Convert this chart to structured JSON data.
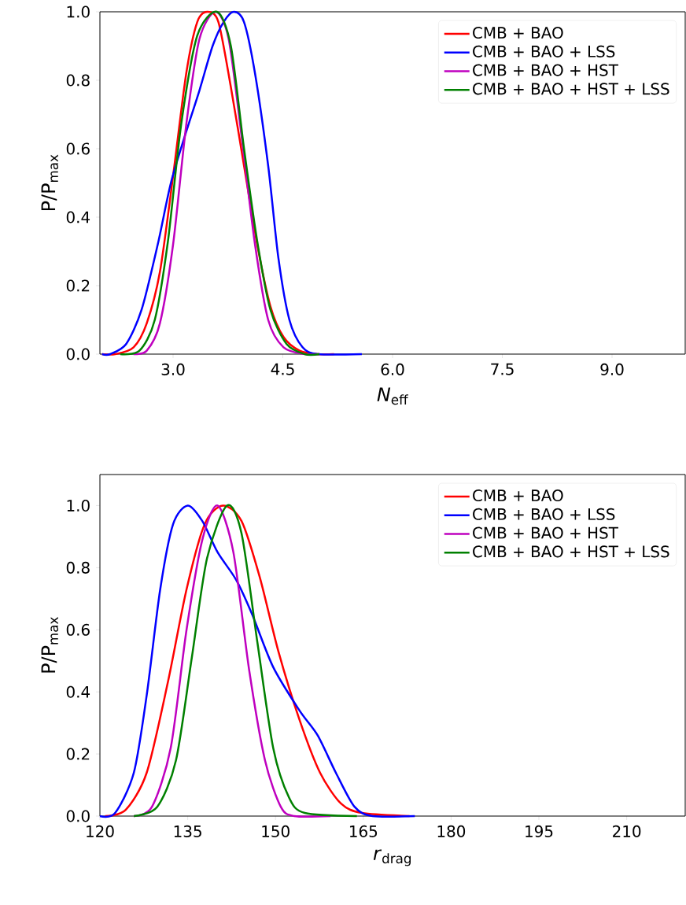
{
  "chart_data": [
    {
      "type": "line",
      "xlabel": "*N*$_{eff}$",
      "ylabel": "P/P$_{max}$",
      "xlim": [
        2.0,
        10.0
      ],
      "ylim": [
        0,
        1.0
      ],
      "xticks": [
        {
          "value": 3,
          "label": "3.0"
        },
        {
          "value": 4.5,
          "label": "4.5"
        },
        {
          "value": 6,
          "label": "6.0"
        },
        {
          "value": 7.5,
          "label": "7.5"
        },
        {
          "value": 9,
          "label": "9.0"
        }
      ],
      "yticks": [
        {
          "value": 0,
          "label": "0.0"
        },
        {
          "value": 0.2,
          "label": "0.2"
        },
        {
          "value": 0.4,
          "label": "0.4"
        },
        {
          "value": 0.6,
          "label": "0.6"
        },
        {
          "value": 0.8,
          "label": "0.8"
        },
        {
          "value": 1.0,
          "label": "1.0"
        }
      ],
      "legend": "top right",
      "line_style": "solid",
      "marker": "none",
      "series": [
        {
          "name": "CMB + BAO",
          "color": "#ff0000",
          "x": [
            2.03,
            2.21,
            2.46,
            2.64,
            2.82,
            3.0,
            3.18,
            3.33,
            3.47,
            3.62,
            3.79,
            3.97,
            4.15,
            4.33,
            4.51,
            4.73,
            4.98,
            5.2
          ],
          "values": [
            0,
            0,
            0.02,
            0.09,
            0.24,
            0.52,
            0.82,
            0.97,
            1.0,
            0.97,
            0.78,
            0.55,
            0.32,
            0.14,
            0.05,
            0.01,
            0,
            0
          ]
        },
        {
          "name": "CMB + BAO + LSS",
          "color": "#0000ff",
          "x": [
            2.03,
            2.14,
            2.36,
            2.57,
            2.79,
            2.97,
            3.18,
            3.36,
            3.54,
            3.69,
            3.83,
            3.97,
            4.12,
            4.3,
            4.44,
            4.59,
            4.77,
            4.98,
            5.58
          ],
          "values": [
            0,
            0,
            0.03,
            0.13,
            0.32,
            0.5,
            0.65,
            0.77,
            0.9,
            0.97,
            1.0,
            0.97,
            0.82,
            0.55,
            0.28,
            0.1,
            0.02,
            0,
            0
          ]
        },
        {
          "name": "CMB + BAO + HST",
          "color": "#bf00bf",
          "x": [
            2.46,
            2.64,
            2.82,
            3.0,
            3.18,
            3.36,
            3.58,
            3.76,
            3.94,
            4.12,
            4.3,
            4.51,
            4.8,
            5.0
          ],
          "values": [
            0,
            0.01,
            0.09,
            0.32,
            0.67,
            0.92,
            1.0,
            0.92,
            0.63,
            0.32,
            0.1,
            0.02,
            0,
            0
          ]
        },
        {
          "name": "CMB + BAO + HST + LSS",
          "color": "#008000",
          "x": [
            2.28,
            2.54,
            2.75,
            2.93,
            3.11,
            3.33,
            3.6,
            3.79,
            3.97,
            4.15,
            4.33,
            4.55,
            4.8,
            5.0
          ],
          "values": [
            0,
            0.01,
            0.1,
            0.33,
            0.67,
            0.93,
            1.0,
            0.9,
            0.6,
            0.33,
            0.13,
            0.03,
            0,
            0
          ]
        }
      ]
    },
    {
      "type": "line",
      "xlabel": "*r*$_{drag}$",
      "ylabel": "P/P$_{max}$",
      "xlim": [
        120,
        220
      ],
      "ylim": [
        0,
        1.1
      ],
      "xticks": [
        120,
        135,
        150,
        165,
        180,
        195,
        210
      ],
      "yticks": [
        {
          "value": 0,
          "label": "0.0"
        },
        {
          "value": 0.2,
          "label": "0.2"
        },
        {
          "value": 0.4,
          "label": "0.4"
        },
        {
          "value": 0.6,
          "label": "0.6"
        },
        {
          "value": 0.8,
          "label": "0.8"
        },
        {
          "value": 1.0,
          "label": "1.0"
        }
      ],
      "legend": "top right",
      "line_style": "solid",
      "marker": "none",
      "series": [
        {
          "name": "CMB + BAO",
          "color": "#ff0000",
          "x": [
            120.9,
            124.4,
            128.0,
            131.6,
            134.8,
            137.9,
            141.0,
            144.2,
            147.3,
            150.5,
            154.1,
            157.6,
            161.2,
            164.8,
            172.9
          ],
          "values": [
            0,
            0.02,
            0.14,
            0.43,
            0.73,
            0.94,
            1.0,
            0.95,
            0.77,
            0.53,
            0.31,
            0.14,
            0.04,
            0.01,
            0
          ]
        },
        {
          "name": "CMB + BAO + LSS",
          "color": "#0000ff",
          "x": [
            120,
            122.6,
            125.8,
            128.0,
            130.3,
            132.5,
            135.0,
            137.5,
            140.1,
            143.3,
            146.0,
            149.6,
            154.1,
            157.2,
            160.3,
            163.5,
            166.6,
            173.8
          ],
          "values": [
            0,
            0.01,
            0.14,
            0.39,
            0.73,
            0.94,
            1.0,
            0.95,
            0.85,
            0.76,
            0.65,
            0.48,
            0.34,
            0.26,
            0.14,
            0.03,
            0,
            0
          ]
        },
        {
          "name": "CMB + BAO + HST",
          "color": "#bf00bf",
          "x": [
            125.8,
            128.9,
            132.1,
            134.8,
            137.5,
            140.1,
            142.8,
            145.5,
            148.2,
            150.9,
            153.2,
            159.4
          ],
          "values": [
            0,
            0.03,
            0.22,
            0.6,
            0.89,
            1.0,
            0.85,
            0.47,
            0.18,
            0.03,
            0,
            0
          ]
        },
        {
          "name": "CMB + BAO + HST + LSS",
          "color": "#008000",
          "x": [
            125.8,
            129.8,
            133.0,
            135.7,
            138.3,
            141.7,
            144.2,
            146.9,
            149.6,
            152.3,
            155.0,
            163.9
          ],
          "values": [
            0,
            0.03,
            0.18,
            0.51,
            0.83,
            1.0,
            0.91,
            0.56,
            0.22,
            0.06,
            0.01,
            0
          ]
        }
      ]
    }
  ]
}
